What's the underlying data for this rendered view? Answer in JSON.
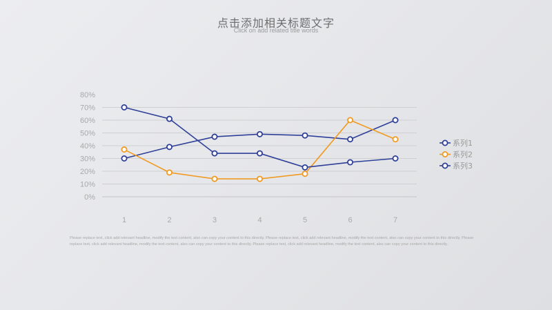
{
  "header": {
    "title": "点击添加相关标题文字",
    "subtitle": "Click on add related title words"
  },
  "chart_data": {
    "type": "line",
    "categories": [
      "1",
      "2",
      "3",
      "4",
      "5",
      "6",
      "7"
    ],
    "ylim": [
      0,
      80
    ],
    "yticks": [
      "0%",
      "10%",
      "20%",
      "30%",
      "40%",
      "50%",
      "60%",
      "70%",
      "80%"
    ],
    "grid": true,
    "legend_position": "right",
    "series": [
      {
        "name": "系列1",
        "color": "#2e3f97",
        "values": [
          30,
          39,
          47,
          49,
          48,
          45,
          60
        ]
      },
      {
        "name": "系列2",
        "color": "#f09a21",
        "values": [
          37,
          19,
          14,
          14,
          18,
          60,
          45
        ]
      },
      {
        "name": "系列3",
        "color": "#2e3f97",
        "values": [
          70,
          61,
          34,
          34,
          23,
          27,
          30
        ]
      }
    ]
  },
  "body_text": "Please replace text, click add relevant headline, modify the text content, also can copy your content to this directly. Please replace text, click add relevant headline, modify the text content, also can copy your content to this directly. Please replace text, click add relevant headline, modify the text content, also can copy your content to this directly. Please replace text, click add relevant headline, modify the text content, also can copy your content to this directly."
}
